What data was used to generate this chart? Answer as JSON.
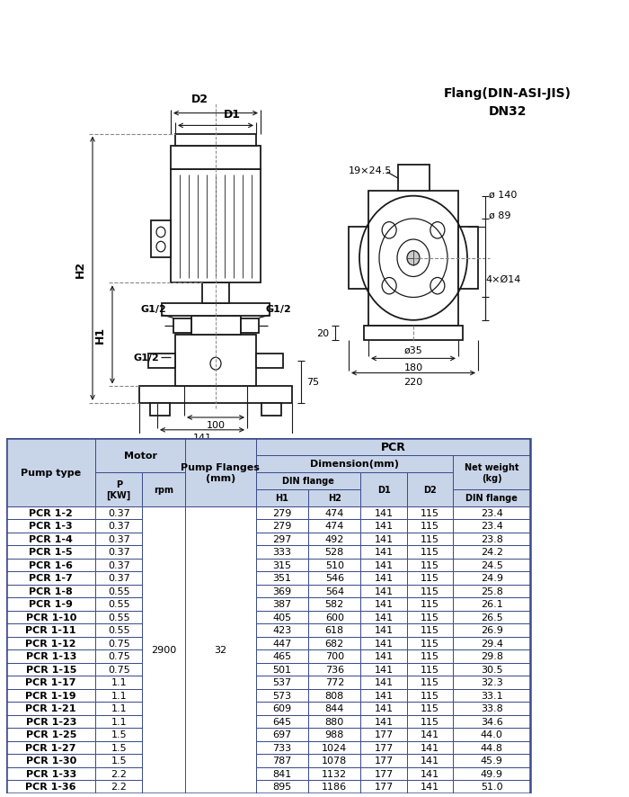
{
  "rows": [
    [
      "PCR 1-2",
      "0.37",
      "279",
      "474",
      "141",
      "115",
      "23.4"
    ],
    [
      "PCR 1-3",
      "0.37",
      "279",
      "474",
      "141",
      "115",
      "23.4"
    ],
    [
      "PCR 1-4",
      "0.37",
      "297",
      "492",
      "141",
      "115",
      "23.8"
    ],
    [
      "PCR 1-5",
      "0.37",
      "333",
      "528",
      "141",
      "115",
      "24.2"
    ],
    [
      "PCR 1-6",
      "0.37",
      "315",
      "510",
      "141",
      "115",
      "24.5"
    ],
    [
      "PCR 1-7",
      "0.37",
      "351",
      "546",
      "141",
      "115",
      "24.9"
    ],
    [
      "PCR 1-8",
      "0.55",
      "369",
      "564",
      "141",
      "115",
      "25.8"
    ],
    [
      "PCR 1-9",
      "0.55",
      "387",
      "582",
      "141",
      "115",
      "26.1"
    ],
    [
      "PCR 1-10",
      "0.55",
      "405",
      "600",
      "141",
      "115",
      "26.5"
    ],
    [
      "PCR 1-11",
      "0.55",
      "423",
      "618",
      "141",
      "115",
      "26.9"
    ],
    [
      "PCR 1-12",
      "0.75",
      "447",
      "682",
      "141",
      "115",
      "29.4"
    ],
    [
      "PCR 1-13",
      "0.75",
      "465",
      "700",
      "141",
      "115",
      "29.8"
    ],
    [
      "PCR 1-15",
      "0.75",
      "501",
      "736",
      "141",
      "115",
      "30.5"
    ],
    [
      "PCR 1-17",
      "1.1",
      "537",
      "772",
      "141",
      "115",
      "32.3"
    ],
    [
      "PCR 1-19",
      "1.1",
      "573",
      "808",
      "141",
      "115",
      "33.1"
    ],
    [
      "PCR 1-21",
      "1.1",
      "609",
      "844",
      "141",
      "115",
      "33.8"
    ],
    [
      "PCR 1-23",
      "1.1",
      "645",
      "880",
      "141",
      "115",
      "34.6"
    ],
    [
      "PCR 1-25",
      "1.5",
      "697",
      "988",
      "177",
      "141",
      "44.0"
    ],
    [
      "PCR 1-27",
      "1.5",
      "733",
      "1024",
      "177",
      "141",
      "44.8"
    ],
    [
      "PCR 1-30",
      "1.5",
      "787",
      "1078",
      "177",
      "141",
      "45.9"
    ],
    [
      "PCR 1-33",
      "2.2",
      "841",
      "1132",
      "177",
      "141",
      "49.9"
    ],
    [
      "PCR 1-36",
      "2.2",
      "895",
      "1186",
      "177",
      "141",
      "51.0"
    ]
  ],
  "rpm": "2900",
  "pump_flanges": "32",
  "bg_color": "#ffffff",
  "border_color": "#3a4a8a",
  "header_bg": "#c8d4e8",
  "text_color": "#000000",
  "flange_label1": "Flang(DIN-ASI-JIS)",
  "flange_label2": "DN32"
}
